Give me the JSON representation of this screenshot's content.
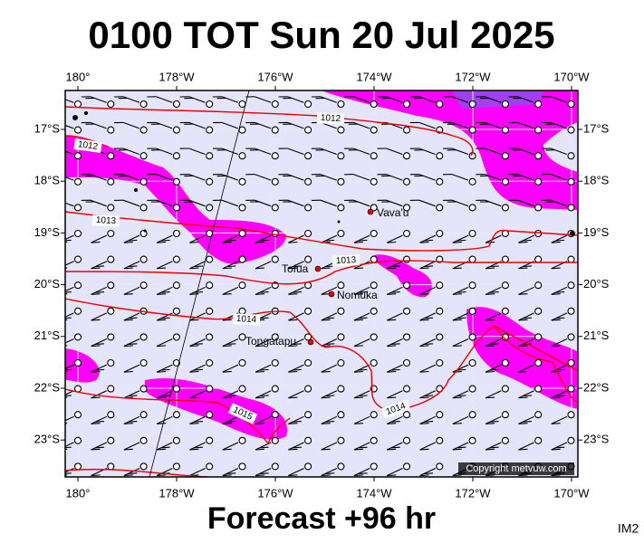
{
  "title": "0100 TOT Sun 20 Jul 2025",
  "footer": "Forecast +96 hr",
  "image_id": "IM2",
  "copyright": "Copyright metvuw.com",
  "lon_labels": [
    "180°",
    "178°W",
    "176°W",
    "174°W",
    "172°W",
    "170°W"
  ],
  "lat_labels": [
    "17°S",
    "18°S",
    "19°S",
    "20°S",
    "21°S",
    "22°S",
    "23°S"
  ],
  "isobar_labels": [
    "1012",
    "1012",
    "1013",
    "1013",
    "1014",
    "1015",
    "1014"
  ],
  "places": [
    "Vava'u",
    "Tofua",
    "Nomuka",
    "Tongatapu"
  ]
}
